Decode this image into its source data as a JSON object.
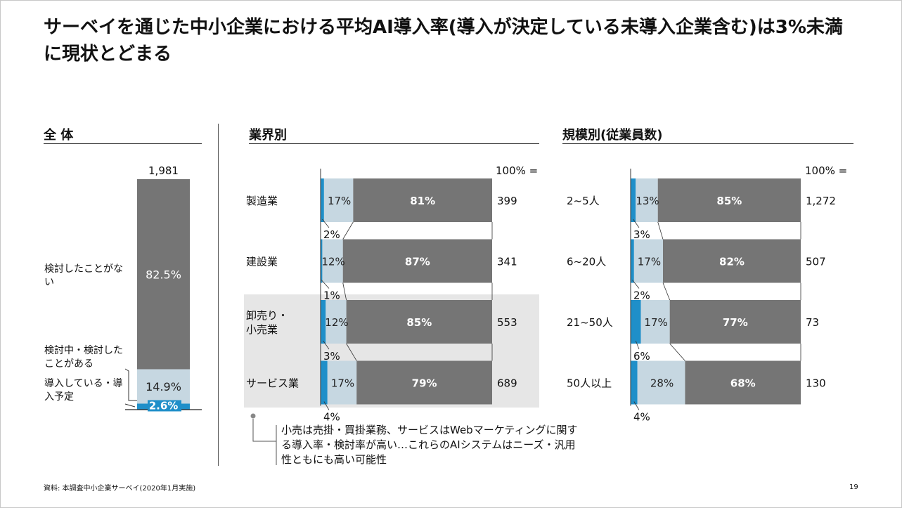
{
  "title": "サーベイを通じた中小企業における平均AI導入率(導入が決定している未導入企業含む)は3%未満に現状とどまる",
  "sections": {
    "overall": "全 体",
    "industry": "業界別",
    "size": "規模別(従業員数)"
  },
  "pct_header": "100% =",
  "footer": "資料: 本調査中小企業サーベイ(2020年1月実施)",
  "page_number": "19",
  "note": "小売は売掛・買掛業務、サービスはWebマーケティングに関する導入率・検討率が高い…これらのAIシステムはニーズ・汎用性ともにも高い可能性",
  "colors": {
    "adopted": "#1f8fc9",
    "considering": "#c6d7e1",
    "never": "#757575",
    "highlight": "#e6e6e6"
  },
  "chart_data": [
    {
      "type": "bar",
      "name": "overall",
      "stacked": true,
      "orientation": "vertical",
      "n_label": "1,981",
      "segments": [
        {
          "key": "never",
          "label": "検討したことがない",
          "value": 82.5,
          "value_label": "82.5%"
        },
        {
          "key": "considering",
          "label": "検討中・検討したことがある",
          "value": 14.9,
          "value_label": "14.9%"
        },
        {
          "key": "adopted",
          "label": "導入している・導入予定",
          "value": 2.6,
          "value_label": "2.6%"
        }
      ]
    },
    {
      "type": "bar",
      "name": "industry",
      "stacked": true,
      "orientation": "horizontal",
      "rows": [
        {
          "label": "製造業",
          "n": "399",
          "adopted": 2,
          "adopted_label": "2%",
          "considering": 17,
          "considering_label": "17%",
          "never": 81,
          "never_label": "81%"
        },
        {
          "label": "建設業",
          "n": "341",
          "adopted": 1,
          "adopted_label": "1%",
          "considering": 12,
          "considering_label": "12%",
          "never": 87,
          "never_label": "87%"
        },
        {
          "label": "卸売り・小売業",
          "n": "553",
          "adopted": 3,
          "adopted_label": "3%",
          "considering": 12,
          "considering_label": "12%",
          "never": 85,
          "never_label": "85%",
          "highlight": true
        },
        {
          "label": "サービス業",
          "n": "689",
          "adopted": 4,
          "adopted_label": "4%",
          "considering": 17,
          "considering_label": "17%",
          "never": 79,
          "never_label": "79%",
          "highlight": true
        }
      ]
    },
    {
      "type": "bar",
      "name": "size",
      "stacked": true,
      "orientation": "horizontal",
      "rows": [
        {
          "label": "2~5人",
          "n": "1,272",
          "adopted": 3,
          "adopted_label": "3%",
          "considering": 13,
          "considering_label": "13%",
          "never": 85,
          "never_label": "85%"
        },
        {
          "label": "6~20人",
          "n": "507",
          "adopted": 2,
          "adopted_label": "2%",
          "considering": 17,
          "considering_label": "17%",
          "never": 82,
          "never_label": "82%"
        },
        {
          "label": "21~50人",
          "n": "73",
          "adopted": 6,
          "adopted_label": "6%",
          "considering": 17,
          "considering_label": "17%",
          "never": 77,
          "never_label": "77%"
        },
        {
          "label": "50人以上",
          "n": "130",
          "adopted": 4,
          "adopted_label": "4%",
          "considering": 28,
          "considering_label": "28%",
          "never": 68,
          "never_label": "68%"
        }
      ]
    }
  ]
}
